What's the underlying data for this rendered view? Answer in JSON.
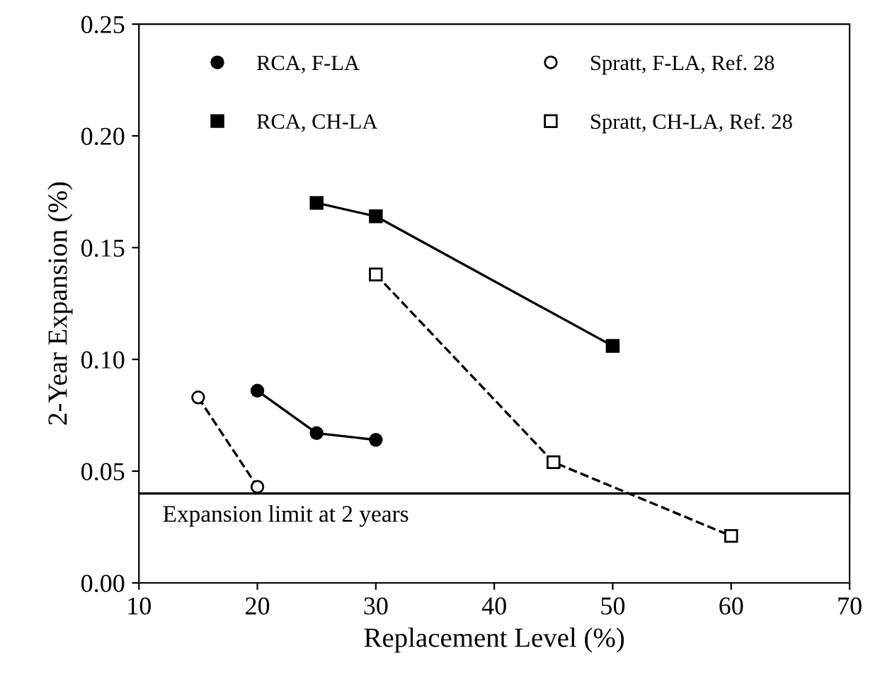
{
  "chart_data": {
    "type": "line",
    "xlabel": "Replacement Level (%)",
    "ylabel": "2-Year Expansion (%)",
    "series": [
      {
        "name": "RCA, F-LA",
        "color": "#000000",
        "marker": "circle",
        "line_style": "solid",
        "x": [
          20,
          25,
          30
        ],
        "values": [
          0.086,
          0.067,
          0.064
        ]
      },
      {
        "name": "RCA, CH-LA",
        "color": "#000000",
        "marker": "square",
        "line_style": "solid",
        "x": [
          25,
          30,
          50
        ],
        "values": [
          0.17,
          0.164,
          0.106
        ]
      },
      {
        "name": "Spratt, F-LA, Ref. 28",
        "color": "#000000",
        "marker": "circle",
        "line_style": "dashed",
        "x": [
          15,
          20
        ],
        "values": [
          0.083,
          0.043
        ]
      },
      {
        "name": "Spratt, CH-LA, Ref. 28",
        "color": "#000000",
        "marker": "square",
        "line_style": "dashed",
        "x": [
          30,
          45,
          60
        ],
        "values": [
          0.138,
          0.054,
          0.021
        ]
      }
    ],
    "xlim": [
      10,
      70
    ],
    "xticks": [
      10,
      20,
      30,
      40,
      50,
      60,
      70
    ],
    "ylim": [
      0,
      0.25
    ],
    "yticks": [
      {
        "value": 0,
        "label": "0.00"
      },
      {
        "value": 0.05,
        "label": "0.05"
      },
      {
        "value": 0.1,
        "label": "0.10"
      },
      {
        "value": 0.15,
        "label": "0.15"
      },
      {
        "value": 0.2,
        "label": "0.20"
      },
      {
        "value": 0.25,
        "label": "0.25"
      }
    ],
    "ref_lines": [
      {
        "axis": "y",
        "value": 0.04,
        "label": "Expansion limit at 2 years",
        "color": "#000000",
        "line_style": "solid"
      }
    ],
    "legend": "top",
    "grid": false
  }
}
